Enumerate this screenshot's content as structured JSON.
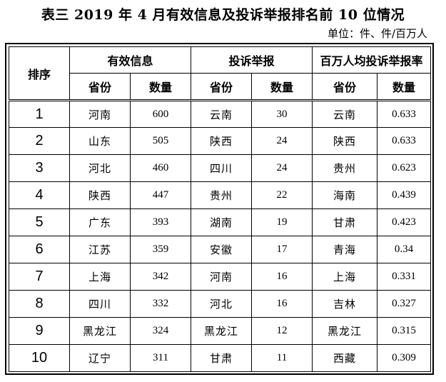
{
  "title": "表三  2019 年 4 月有效信息及投诉举报排名前 10 位情况",
  "unit": "单位：件、件/百万人",
  "headers": {
    "rank": "排序",
    "group1": "有效信息",
    "group2": "投诉举报",
    "group3": "百万人均投诉举报率",
    "province": "省份",
    "count": "数量"
  },
  "rows": [
    {
      "rank": "1",
      "p1": "河南",
      "v1": "600",
      "p2": "云南",
      "v2": "30",
      "p3": "云南",
      "v3": "0.633"
    },
    {
      "rank": "2",
      "p1": "山东",
      "v1": "505",
      "p2": "陕西",
      "v2": "24",
      "p3": "陕西",
      "v3": "0.633"
    },
    {
      "rank": "3",
      "p1": "河北",
      "v1": "460",
      "p2": "四川",
      "v2": "24",
      "p3": "贵州",
      "v3": "0.623"
    },
    {
      "rank": "4",
      "p1": "陕西",
      "v1": "447",
      "p2": "贵州",
      "v2": "22",
      "p3": "海南",
      "v3": "0.439"
    },
    {
      "rank": "5",
      "p1": "广东",
      "v1": "393",
      "p2": "湖南",
      "v2": "19",
      "p3": "甘肃",
      "v3": "0.423"
    },
    {
      "rank": "6",
      "p1": "江苏",
      "v1": "359",
      "p2": "安徽",
      "v2": "17",
      "p3": "青海",
      "v3": "0.34"
    },
    {
      "rank": "7",
      "p1": "上海",
      "v1": "342",
      "p2": "河南",
      "v2": "16",
      "p3": "上海",
      "v3": "0.331"
    },
    {
      "rank": "8",
      "p1": "四川",
      "v1": "332",
      "p2": "河北",
      "v2": "16",
      "p3": "吉林",
      "v3": "0.327"
    },
    {
      "rank": "9",
      "p1": "黑龙江",
      "v1": "324",
      "p2": "黑龙江",
      "v2": "12",
      "p3": "黑龙江",
      "v3": "0.315"
    },
    {
      "rank": "10",
      "p1": "辽宁",
      "v1": "311",
      "p2": "甘肃",
      "v2": "11",
      "p3": "西藏",
      "v3": "0.309"
    }
  ]
}
